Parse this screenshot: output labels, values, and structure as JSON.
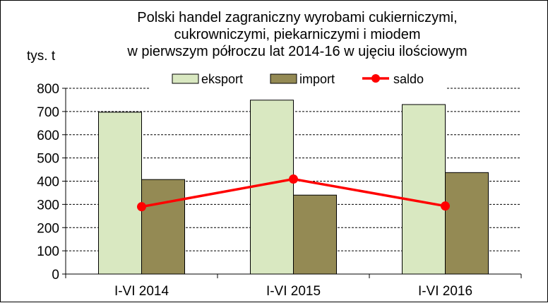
{
  "chart_data": {
    "type": "bar",
    "title_lines": [
      "Polski handel zagraniczny wyrobami  cukierniczymi,",
      "cukrowniczymi,  piekarniczymi  i miodem",
      "w pierwszym  półroczu lat 2014-16 w ujęciu ilościowym"
    ],
    "ylabel": "tys. t",
    "categories": [
      "I-VI 2014",
      "I-VI 2015",
      "I-VI 2016"
    ],
    "series": [
      {
        "name": "eksport",
        "type": "bar",
        "values": [
          697,
          749,
          730
        ]
      },
      {
        "name": "import",
        "type": "bar",
        "values": [
          407,
          340,
          437
        ]
      },
      {
        "name": "saldo",
        "type": "line",
        "values": [
          290,
          409,
          293
        ]
      }
    ],
    "ylim": [
      0,
      800
    ],
    "yticks": [
      0,
      100,
      200,
      300,
      400,
      500,
      600,
      700,
      800
    ],
    "grid": true,
    "legend_position": "top",
    "colors": {
      "eksport": "#d9e8c1",
      "import": "#948a54",
      "saldo": "#ff0000",
      "bar_stroke": "#000000",
      "grid": "#000000"
    }
  }
}
